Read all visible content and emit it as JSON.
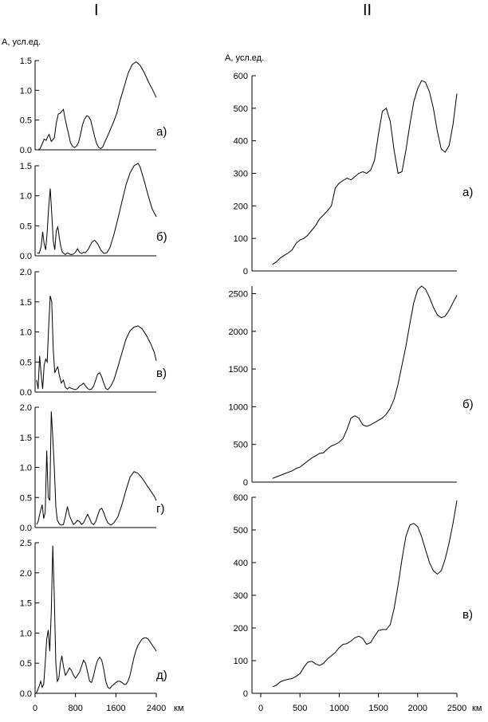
{
  "headers": {
    "left": "I",
    "right": "II"
  },
  "units": {
    "left_y": "А, усл.ед.",
    "right_y": "А, усл.ед.",
    "x_unit": "км"
  },
  "chart_data": [
    {
      "type": "line",
      "column": "I",
      "panel": "а)",
      "ylim": [
        0,
        1.5
      ],
      "yticks": [
        0.0,
        0.5,
        1.0,
        1.5
      ],
      "xlim": [
        0,
        2400
      ],
      "xticks": [],
      "x": [
        60,
        100,
        140,
        180,
        220,
        250,
        280,
        320,
        380,
        420,
        460,
        500,
        560,
        600,
        640,
        680,
        700,
        740,
        780,
        820,
        860,
        900,
        940,
        980,
        1020,
        1060,
        1100,
        1140,
        1180,
        1220,
        1260,
        1300,
        1340,
        1380,
        1420,
        1460,
        1500,
        1560,
        1620,
        1680,
        1760,
        1840,
        1920,
        2000,
        2080,
        2160,
        2240,
        2320,
        2400
      ],
      "y": [
        0.0,
        0.02,
        0.1,
        0.18,
        0.16,
        0.22,
        0.26,
        0.14,
        0.2,
        0.45,
        0.6,
        0.62,
        0.68,
        0.5,
        0.35,
        0.2,
        0.12,
        0.06,
        0.04,
        0.06,
        0.12,
        0.26,
        0.42,
        0.52,
        0.57,
        0.56,
        0.5,
        0.36,
        0.22,
        0.1,
        0.04,
        0.02,
        0.05,
        0.13,
        0.2,
        0.28,
        0.36,
        0.48,
        0.62,
        0.82,
        1.05,
        1.28,
        1.43,
        1.48,
        1.42,
        1.3,
        1.15,
        1.02,
        0.88
      ]
    },
    {
      "type": "line",
      "column": "I",
      "panel": "б)",
      "ylim": [
        0,
        1.5
      ],
      "yticks": [
        0.0,
        0.5,
        1.0,
        1.5
      ],
      "xlim": [
        0,
        2400
      ],
      "xticks": [],
      "x": [
        40,
        80,
        120,
        150,
        180,
        210,
        240,
        270,
        300,
        330,
        360,
        390,
        420,
        450,
        480,
        510,
        540,
        570,
        600,
        640,
        680,
        720,
        760,
        800,
        840,
        880,
        920,
        960,
        1000,
        1060,
        1120,
        1180,
        1240,
        1300,
        1360,
        1420,
        1480,
        1560,
        1640,
        1720,
        1800,
        1880,
        1960,
        2040,
        2080,
        2160,
        2240,
        2320,
        2400
      ],
      "y": [
        0.05,
        0.04,
        0.15,
        0.4,
        0.2,
        0.1,
        0.4,
        0.82,
        1.12,
        0.7,
        0.25,
        0.1,
        0.42,
        0.48,
        0.3,
        0.15,
        0.06,
        0.04,
        0.02,
        0.05,
        0.03,
        0.02,
        0.03,
        0.06,
        0.12,
        0.06,
        0.04,
        0.06,
        0.05,
        0.12,
        0.22,
        0.26,
        0.2,
        0.1,
        0.04,
        0.05,
        0.13,
        0.35,
        0.62,
        0.9,
        1.18,
        1.38,
        1.5,
        1.54,
        1.48,
        1.25,
        1.0,
        0.78,
        0.65
      ]
    },
    {
      "type": "line",
      "column": "I",
      "panel": "в)",
      "ylim": [
        0,
        2.0
      ],
      "yticks": [
        0.0,
        0.5,
        1.0,
        1.5,
        2.0
      ],
      "xlim": [
        0,
        2400
      ],
      "xticks": [],
      "x": [
        30,
        60,
        90,
        120,
        150,
        180,
        210,
        240,
        270,
        300,
        330,
        360,
        390,
        420,
        450,
        480,
        520,
        560,
        600,
        640,
        680,
        720,
        760,
        800,
        840,
        880,
        920,
        960,
        1000,
        1040,
        1080,
        1120,
        1160,
        1200,
        1240,
        1280,
        1320,
        1360,
        1400,
        1440,
        1500,
        1560,
        1640,
        1720,
        1800,
        1880,
        1960,
        2040,
        2120,
        2200,
        2280,
        2360,
        2400
      ],
      "y": [
        0.2,
        0.05,
        0.6,
        0.3,
        0.05,
        0.45,
        0.55,
        0.5,
        1.1,
        1.6,
        1.5,
        0.7,
        0.32,
        0.38,
        0.42,
        0.28,
        0.15,
        0.2,
        0.08,
        0.05,
        0.08,
        0.06,
        0.05,
        0.04,
        0.06,
        0.1,
        0.12,
        0.15,
        0.1,
        0.06,
        0.04,
        0.05,
        0.1,
        0.2,
        0.3,
        0.32,
        0.25,
        0.15,
        0.06,
        0.04,
        0.1,
        0.2,
        0.42,
        0.65,
        0.88,
        1.02,
        1.08,
        1.1,
        1.05,
        0.95,
        0.82,
        0.66,
        0.52
      ]
    },
    {
      "type": "line",
      "column": "I",
      "panel": "г)",
      "ylim": [
        0,
        2.0
      ],
      "yticks": [
        0.0,
        0.5,
        1.0,
        1.5,
        2.0
      ],
      "xlim": [
        0,
        2400
      ],
      "xticks": [],
      "x": [
        30,
        60,
        100,
        140,
        170,
        200,
        230,
        260,
        290,
        320,
        350,
        380,
        410,
        440,
        480,
        520,
        560,
        600,
        640,
        680,
        720,
        760,
        800,
        840,
        880,
        920,
        960,
        1000,
        1040,
        1080,
        1120,
        1160,
        1200,
        1240,
        1280,
        1320,
        1360,
        1400,
        1440,
        1500,
        1560,
        1640,
        1720,
        1800,
        1880,
        1960,
        2040,
        2120,
        2200,
        2280,
        2360,
        2400
      ],
      "y": [
        0.05,
        0.1,
        0.25,
        0.38,
        0.15,
        0.25,
        1.28,
        0.5,
        0.45,
        1.93,
        1.5,
        1.0,
        0.35,
        0.12,
        0.06,
        0.04,
        0.05,
        0.18,
        0.35,
        0.2,
        0.12,
        0.05,
        0.08,
        0.12,
        0.1,
        0.05,
        0.08,
        0.15,
        0.22,
        0.15,
        0.07,
        0.05,
        0.1,
        0.2,
        0.3,
        0.32,
        0.25,
        0.15,
        0.08,
        0.04,
        0.08,
        0.18,
        0.38,
        0.62,
        0.84,
        0.93,
        0.9,
        0.82,
        0.72,
        0.62,
        0.52,
        0.45
      ]
    },
    {
      "type": "line",
      "column": "I",
      "panel": "д)",
      "ylim": [
        0,
        2.5
      ],
      "yticks": [
        0.0,
        0.5,
        1.0,
        1.5,
        2.0,
        2.5
      ],
      "xlim": [
        0,
        2400
      ],
      "xticks": [
        0,
        800,
        1600,
        2400
      ],
      "x": [
        20,
        50,
        80,
        110,
        140,
        170,
        200,
        230,
        260,
        290,
        320,
        350,
        380,
        410,
        440,
        470,
        500,
        530,
        560,
        600,
        640,
        680,
        720,
        760,
        800,
        840,
        880,
        920,
        960,
        1000,
        1040,
        1080,
        1120,
        1160,
        1200,
        1240,
        1280,
        1320,
        1360,
        1400,
        1440,
        1480,
        1520,
        1560,
        1600,
        1640,
        1680,
        1720,
        1760,
        1800,
        1840,
        1880,
        1920,
        1960,
        2000,
        2040,
        2080,
        2120,
        2160,
        2200,
        2240,
        2280,
        2320,
        2360,
        2400
      ],
      "y": [
        0.0,
        0.05,
        0.12,
        0.2,
        0.1,
        0.15,
        0.5,
        0.9,
        1.05,
        0.7,
        1.35,
        2.45,
        1.6,
        0.5,
        0.2,
        0.25,
        0.5,
        0.62,
        0.45,
        0.3,
        0.35,
        0.42,
        0.38,
        0.3,
        0.25,
        0.3,
        0.35,
        0.45,
        0.55,
        0.5,
        0.35,
        0.2,
        0.18,
        0.3,
        0.45,
        0.55,
        0.6,
        0.55,
        0.4,
        0.2,
        0.1,
        0.08,
        0.12,
        0.15,
        0.18,
        0.2,
        0.2,
        0.18,
        0.15,
        0.15,
        0.2,
        0.3,
        0.45,
        0.6,
        0.72,
        0.8,
        0.85,
        0.9,
        0.92,
        0.92,
        0.9,
        0.85,
        0.8,
        0.75,
        0.7
      ]
    },
    {
      "type": "line",
      "column": "II",
      "panel": "а)",
      "ylim": [
        0,
        600
      ],
      "yticks": [
        0,
        100,
        200,
        300,
        400,
        500,
        600
      ],
      "xlim": [
        0,
        2500
      ],
      "xticks": [],
      "x": [
        150,
        200,
        250,
        300,
        350,
        400,
        450,
        500,
        550,
        600,
        650,
        700,
        750,
        800,
        850,
        900,
        950,
        1000,
        1050,
        1100,
        1150,
        1200,
        1250,
        1300,
        1350,
        1400,
        1450,
        1500,
        1550,
        1600,
        1650,
        1700,
        1750,
        1800,
        1850,
        1900,
        1950,
        2000,
        2050,
        2100,
        2150,
        2200,
        2250,
        2300,
        2350,
        2400,
        2450,
        2500
      ],
      "y": [
        20,
        28,
        40,
        48,
        55,
        65,
        85,
        95,
        100,
        110,
        125,
        140,
        160,
        172,
        185,
        200,
        255,
        270,
        278,
        285,
        280,
        290,
        300,
        305,
        300,
        310,
        340,
        420,
        490,
        500,
        460,
        370,
        300,
        305,
        370,
        450,
        520,
        560,
        585,
        580,
        550,
        500,
        430,
        375,
        365,
        385,
        450,
        545
      ]
    },
    {
      "type": "line",
      "column": "II",
      "panel": "б)",
      "ylim": [
        0,
        2600
      ],
      "yticks": [
        0,
        500,
        1000,
        1500,
        2000,
        2500
      ],
      "xlim": [
        0,
        2500
      ],
      "xticks": [],
      "x": [
        150,
        200,
        250,
        300,
        350,
        400,
        450,
        500,
        550,
        600,
        650,
        700,
        750,
        800,
        850,
        900,
        950,
        1000,
        1050,
        1100,
        1150,
        1200,
        1250,
        1300,
        1350,
        1400,
        1450,
        1500,
        1550,
        1600,
        1650,
        1700,
        1750,
        1800,
        1850,
        1900,
        1950,
        2000,
        2050,
        2100,
        2150,
        2200,
        2250,
        2300,
        2350,
        2400,
        2450,
        2500
      ],
      "y": [
        50,
        70,
        90,
        110,
        130,
        150,
        180,
        200,
        240,
        280,
        320,
        350,
        380,
        390,
        440,
        480,
        500,
        530,
        580,
        700,
        850,
        880,
        850,
        760,
        740,
        760,
        790,
        820,
        850,
        900,
        980,
        1100,
        1300,
        1550,
        1800,
        2100,
        2380,
        2550,
        2600,
        2560,
        2450,
        2320,
        2220,
        2180,
        2200,
        2280,
        2380,
        2480
      ]
    },
    {
      "type": "line",
      "column": "II",
      "panel": "в)",
      "ylim": [
        0,
        600
      ],
      "yticks": [
        0,
        100,
        200,
        300,
        400,
        500,
        600
      ],
      "xlim": [
        0,
        2500
      ],
      "xticks": [
        0,
        500,
        1000,
        1500,
        2000,
        2500
      ],
      "x": [
        150,
        200,
        250,
        300,
        350,
        400,
        450,
        500,
        550,
        600,
        650,
        700,
        750,
        800,
        850,
        900,
        950,
        1000,
        1050,
        1100,
        1150,
        1200,
        1250,
        1300,
        1350,
        1400,
        1450,
        1500,
        1550,
        1600,
        1650,
        1700,
        1750,
        1800,
        1850,
        1900,
        1950,
        2000,
        2050,
        2100,
        2150,
        2200,
        2250,
        2300,
        2350,
        2400,
        2450,
        2500
      ],
      "y": [
        20,
        25,
        35,
        40,
        43,
        45,
        52,
        60,
        80,
        95,
        98,
        90,
        85,
        92,
        105,
        115,
        125,
        140,
        150,
        152,
        160,
        170,
        175,
        168,
        150,
        155,
        175,
        192,
        195,
        195,
        210,
        260,
        330,
        410,
        480,
        515,
        520,
        510,
        480,
        440,
        400,
        375,
        365,
        375,
        410,
        460,
        520,
        590
      ]
    }
  ],
  "panels": {
    "left": {
      "p0": {
        "label": "а)",
        "ticks": [
          "0.0",
          "0.5",
          "1.0",
          "1.5"
        ]
      },
      "p1": {
        "label": "б)",
        "ticks": [
          "0.0",
          "0.5",
          "1.0",
          "1.5"
        ]
      },
      "p2": {
        "label": "в)",
        "ticks": [
          "0.0",
          "0.5",
          "1.0",
          "1.5",
          "2.0"
        ]
      },
      "p3": {
        "label": "г)",
        "ticks": [
          "0.0",
          "0.5",
          "1.0",
          "1.5",
          "2.0"
        ]
      },
      "p4": {
        "label": "д)",
        "ticks": [
          "0.0",
          "0.5",
          "1.0",
          "1.5",
          "2.0",
          "2.5"
        ],
        "xticks": [
          "0",
          "800",
          "1600",
          "2400"
        ]
      }
    },
    "right": {
      "p0": {
        "label": "а)",
        "ticks": [
          "0",
          "100",
          "200",
          "300",
          "400",
          "500",
          "600"
        ]
      },
      "p1": {
        "label": "б)",
        "ticks": [
          "0",
          "500",
          "1000",
          "1500",
          "2000",
          "2500"
        ]
      },
      "p2": {
        "label": "в)",
        "ticks": [
          "0",
          "100",
          "200",
          "300",
          "400",
          "500",
          "600"
        ],
        "xticks": [
          "0",
          "500",
          "1000",
          "1500",
          "2000",
          "2500"
        ]
      }
    }
  }
}
